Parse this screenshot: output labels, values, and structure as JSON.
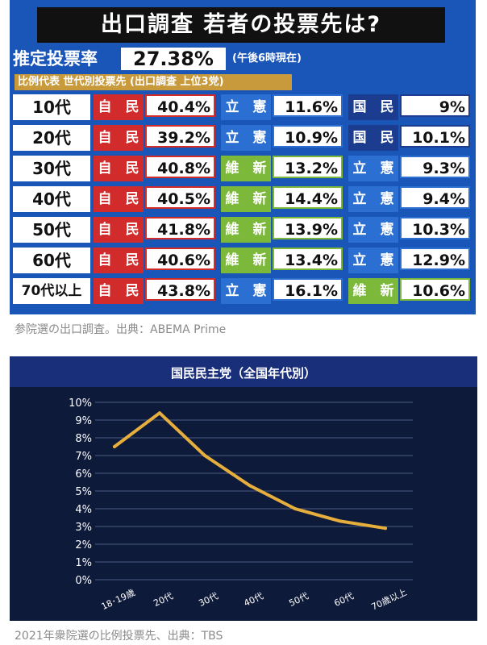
{
  "exit_poll": {
    "title": "出口調査  若者の投票先は?",
    "rate_label": "推定投票率",
    "rate_value": "27.38%",
    "rate_note": "(午後6時現在)",
    "sub_header": "比例代表 世代別投票先 (出口調査 上位3党)",
    "colors": {
      "自民": "#d22b2b",
      "立憲": "#2b6fd2",
      "国民": "#1c3d8f",
      "維新": "#7cb93a"
    },
    "rows": [
      {
        "age": "10代",
        "cells": [
          {
            "party": "自　民",
            "value": "40.4%",
            "key": "自民"
          },
          {
            "party": "立　憲",
            "value": "11.6%",
            "key": "立憲"
          },
          {
            "party": "国　民",
            "value": "9%",
            "key": "国民"
          }
        ]
      },
      {
        "age": "20代",
        "cells": [
          {
            "party": "自　民",
            "value": "39.2%",
            "key": "自民"
          },
          {
            "party": "立　憲",
            "value": "10.9%",
            "key": "立憲"
          },
          {
            "party": "国　民",
            "value": "10.1%",
            "key": "国民"
          }
        ]
      },
      {
        "age": "30代",
        "cells": [
          {
            "party": "自　民",
            "value": "40.8%",
            "key": "自民"
          },
          {
            "party": "維　新",
            "value": "13.2%",
            "key": "維新"
          },
          {
            "party": "立　憲",
            "value": "9.3%",
            "key": "立憲"
          }
        ]
      },
      {
        "age": "40代",
        "cells": [
          {
            "party": "自　民",
            "value": "40.5%",
            "key": "自民"
          },
          {
            "party": "維　新",
            "value": "14.4%",
            "key": "維新"
          },
          {
            "party": "立　憲",
            "value": "9.4%",
            "key": "立憲"
          }
        ]
      },
      {
        "age": "50代",
        "cells": [
          {
            "party": "自　民",
            "value": "41.8%",
            "key": "自民"
          },
          {
            "party": "維　新",
            "value": "13.9%",
            "key": "維新"
          },
          {
            "party": "立　憲",
            "value": "10.3%",
            "key": "立憲"
          }
        ]
      },
      {
        "age": "60代",
        "cells": [
          {
            "party": "自　民",
            "value": "40.6%",
            "key": "自民"
          },
          {
            "party": "維　新",
            "value": "13.4%",
            "key": "維新"
          },
          {
            "party": "立　憲",
            "value": "12.9%",
            "key": "立憲"
          }
        ]
      },
      {
        "age": "70代以上",
        "cells": [
          {
            "party": "自　民",
            "value": "43.8%",
            "key": "自民"
          },
          {
            "party": "立　憲",
            "value": "16.1%",
            "key": "立憲"
          },
          {
            "party": "維　新",
            "value": "10.6%",
            "key": "維新"
          }
        ]
      }
    ]
  },
  "caption1": "参院選の出口調査。出典：ABEMA Prime",
  "chart_data": {
    "type": "line",
    "title": "国民民主党（全国年代別）",
    "categories": [
      "18･19歳",
      "20代",
      "30代",
      "40代",
      "50代",
      "60代",
      "70歳以上"
    ],
    "values": [
      7.5,
      9.4,
      7.0,
      5.3,
      4.0,
      3.3,
      2.9
    ],
    "yticks": [
      "0%",
      "1%",
      "2%",
      "3%",
      "4%",
      "5%",
      "6%",
      "7%",
      "8%",
      "9%",
      "10%"
    ],
    "ylim": [
      0,
      10
    ],
    "grid": true,
    "line_color": "#e6ae3c"
  },
  "caption2": "2021年衆院選の比例投票先、出典：TBS"
}
